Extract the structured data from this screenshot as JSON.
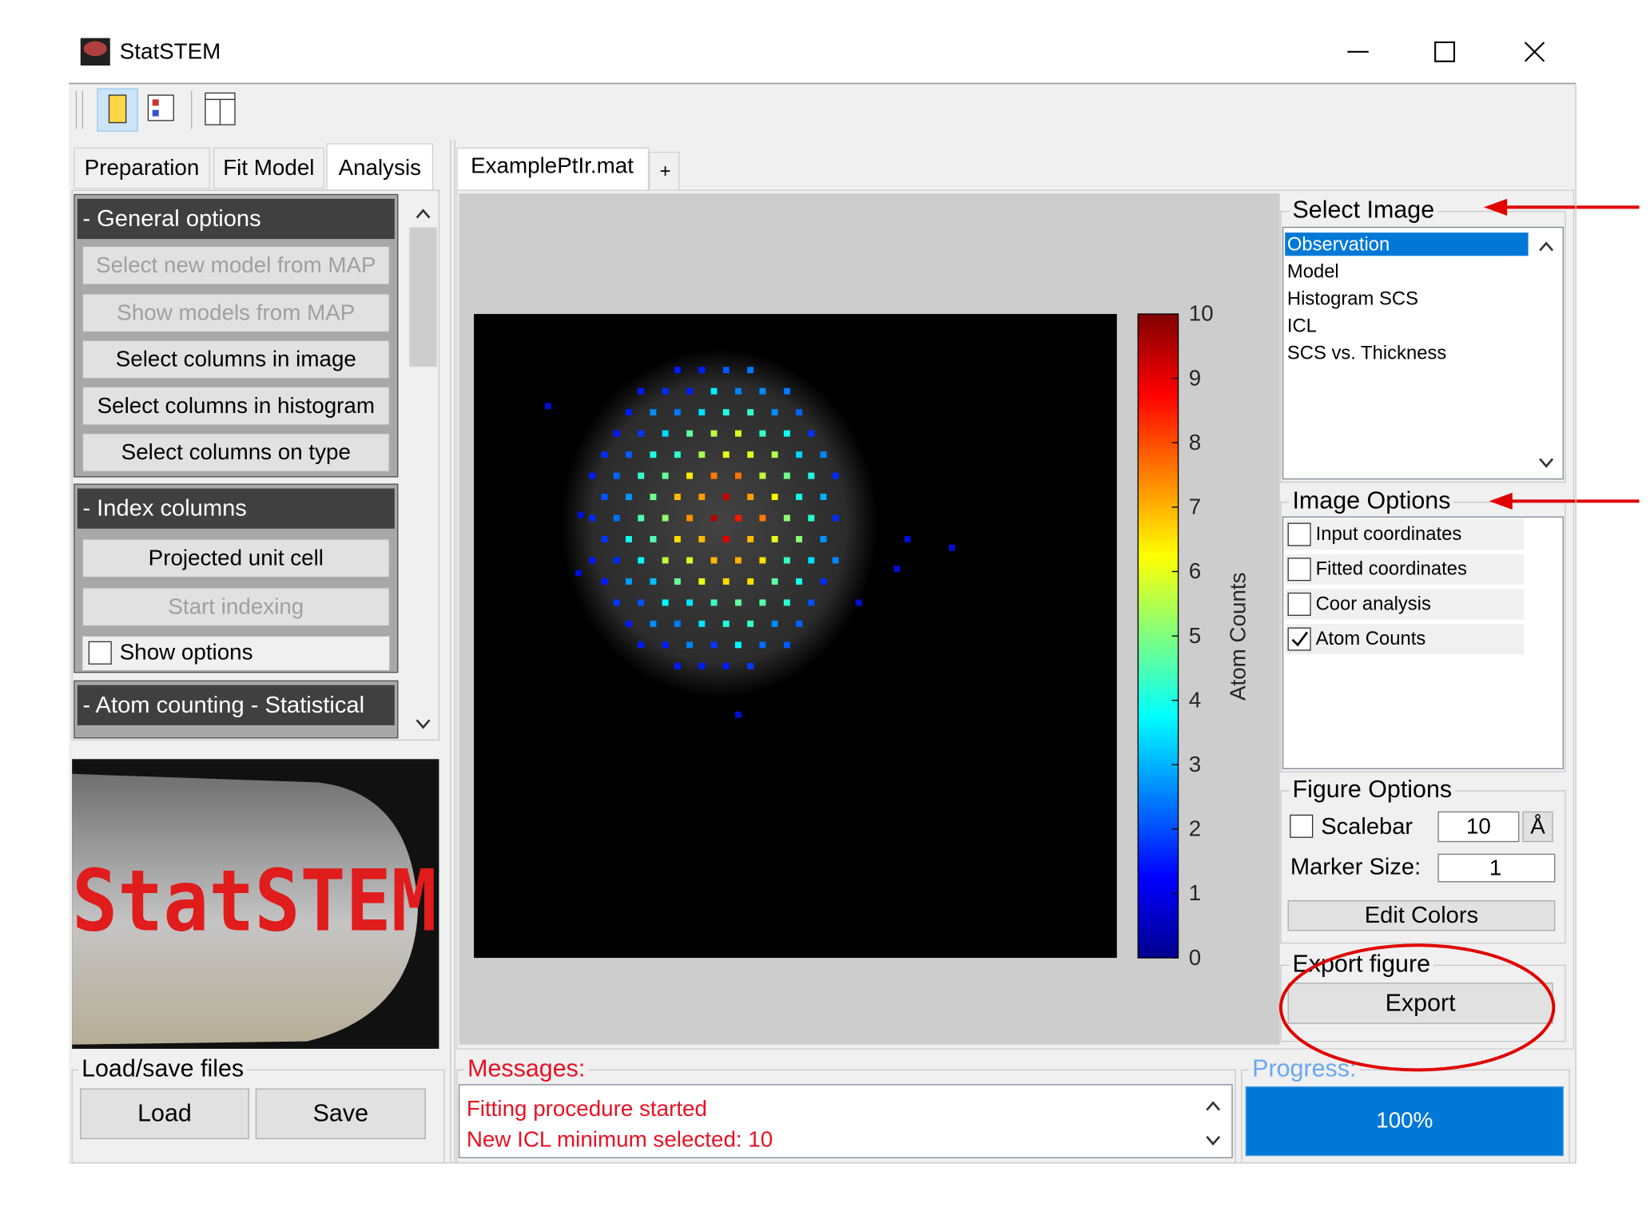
{
  "window": {
    "title": "StatSTEM"
  },
  "left_panel": {
    "tabs": [
      "Preparation",
      "Fit Model",
      "Analysis"
    ],
    "active_tab": 2,
    "sections": [
      {
        "title": "- General options",
        "buttons": [
          {
            "label": "Select new model from MAP",
            "enabled": false
          },
          {
            "label": "Show models from MAP",
            "enabled": false
          },
          {
            "label": "Select columns in image",
            "enabled": true
          },
          {
            "label": "Select columns in histogram",
            "enabled": true
          },
          {
            "label": "Select columns on type",
            "enabled": true
          }
        ]
      },
      {
        "title": "- Index columns",
        "buttons": [
          {
            "label": "Projected unit cell",
            "enabled": true
          },
          {
            "label": "Start indexing",
            "enabled": false
          }
        ],
        "checkbox": {
          "label": "Show options",
          "checked": false
        }
      },
      {
        "title": "- Atom counting - Statistical"
      }
    ],
    "logo": "StatSTEM"
  },
  "files": {
    "title": "Load/save files",
    "buttons": [
      "Load",
      "Save"
    ]
  },
  "figure": {
    "tab": "ExamplePtIr.mat",
    "add_tab": "+",
    "colorbar": {
      "label": "Atom Counts",
      "ticks": [
        0,
        1,
        2,
        3,
        4,
        5,
        6,
        7,
        8,
        9,
        10
      ]
    }
  },
  "select_image": {
    "title": "Select Image",
    "items": [
      "Observation",
      "Model",
      "Histogram SCS",
      "ICL",
      "SCS vs. Thickness"
    ],
    "selected": 0
  },
  "image_options": {
    "title": "Image Options",
    "items": [
      {
        "label": "Input coordinates",
        "checked": false
      },
      {
        "label": "Fitted coordinates",
        "checked": false
      },
      {
        "label": "Coor analysis",
        "checked": false
      },
      {
        "label": "Atom Counts",
        "checked": true
      }
    ]
  },
  "figure_options": {
    "title": "Figure Options",
    "scalebar": {
      "label": "Scalebar",
      "checked": false,
      "value": "10",
      "unit": "Å"
    },
    "marker_size": {
      "label": "Marker Size:",
      "value": "1"
    },
    "button": "Edit Colors"
  },
  "export": {
    "title": "Export figure",
    "button": "Export"
  },
  "messages": {
    "title": "Messages:",
    "lines": [
      "Fitting procedure started",
      "New ICL minimum selected: 10"
    ]
  },
  "progress": {
    "title": "Progress:",
    "value": "100%"
  }
}
